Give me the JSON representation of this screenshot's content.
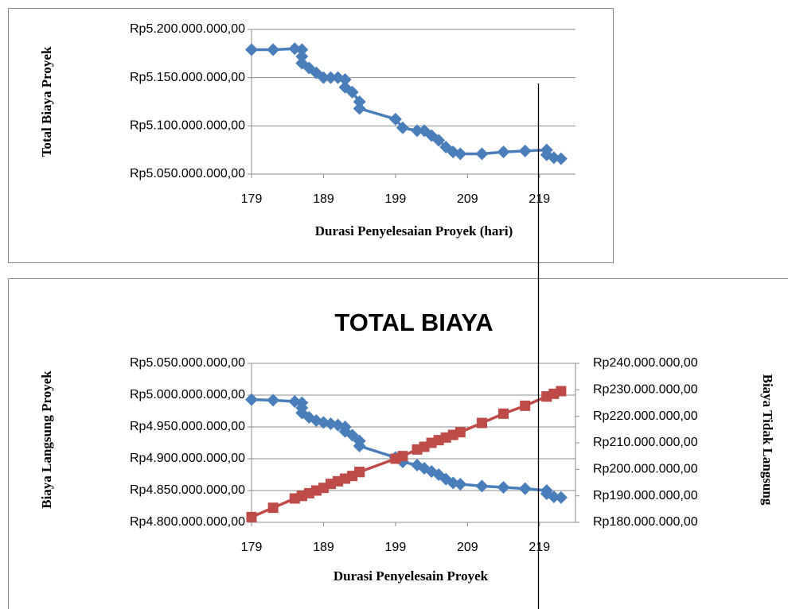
{
  "chart_data": [
    {
      "type": "line",
      "y_label": "Total Biaya Proyek",
      "x_label": "Durasi Penyelesaian Proyek (hari)",
      "x": [
        179,
        182,
        185,
        186,
        186,
        186,
        187,
        188,
        189,
        190,
        191,
        192,
        192,
        193,
        194,
        194,
        199,
        200,
        202,
        203,
        204,
        205,
        206,
        207,
        208,
        211,
        214,
        217,
        220,
        220,
        221,
        222
      ],
      "values": [
        5179000000,
        5179000000,
        5180000000,
        5179000000,
        5172000000,
        5165000000,
        5160000000,
        5155000000,
        5150000000,
        5150000000,
        5150000000,
        5148000000,
        5140000000,
        5135000000,
        5125000000,
        5118000000,
        5107000000,
        5098000000,
        5095000000,
        5095000000,
        5090000000,
        5085000000,
        5078000000,
        5073000000,
        5071000000,
        5071000000,
        5073000000,
        5074000000,
        5075000000,
        5070000000,
        5067000000,
        5066000000
      ],
      "color": "#4a7ebb",
      "xlim": [
        179,
        224
      ],
      "xticks": [
        179,
        189,
        199,
        209,
        219
      ],
      "ylim": [
        5050000000,
        5200000000
      ],
      "yticks": [
        {
          "value": 5050000000,
          "label": "Rp5.050.000.000,00"
        },
        {
          "value": 5100000000,
          "label": "Rp5.100.000.000,00"
        },
        {
          "value": 5150000000,
          "label": "Rp5.150.000.000,00"
        },
        {
          "value": 5200000000,
          "label": "Rp5.200.000.000,00"
        }
      ],
      "grid": true
    },
    {
      "type": "line",
      "title": "TOTAL BIAYA",
      "y_label": "Biaya Langsung Proyek",
      "y2_label": "Biaya Tidak Langsung",
      "x_label": "Durasi Penyelesain Proyek",
      "x": [
        179,
        182,
        185,
        186,
        186,
        186,
        187,
        188,
        189,
        190,
        191,
        192,
        192,
        193,
        194,
        194,
        199,
        200,
        202,
        203,
        204,
        205,
        206,
        207,
        208,
        211,
        214,
        217,
        220,
        220,
        221,
        222
      ],
      "series": [
        {
          "color": "#4a7ebb",
          "marker": "diamond",
          "values": [
            4993000000,
            4992000000,
            4990000000,
            4988000000,
            4980000000,
            4972000000,
            4965000000,
            4960000000,
            4957000000,
            4955000000,
            4953000000,
            4950000000,
            4943000000,
            4937000000,
            4928000000,
            4920000000,
            4902000000,
            4895000000,
            4890000000,
            4885000000,
            4880000000,
            4875000000,
            4868000000,
            4862000000,
            4860000000,
            4857000000,
            4855000000,
            4853000000,
            4850000000,
            4845000000,
            4840000000,
            4839000000
          ]
        },
        {
          "color": "#be4b48",
          "marker": "square",
          "axis": "y2",
          "values": [
            182000000,
            185500000,
            189000000,
            190000000,
            190000000,
            190000000,
            191000000,
            192000000,
            193000000,
            194500000,
            195500000,
            196500000,
            196500000,
            197500000,
            199000000,
            199000000,
            204000000,
            205000000,
            207500000,
            208500000,
            210000000,
            211000000,
            212000000,
            213000000,
            214000000,
            217500000,
            221000000,
            224000000,
            227500000,
            227500000,
            228500000,
            229500000
          ]
        }
      ],
      "xlim": [
        179,
        224
      ],
      "xticks": [
        179,
        189,
        199,
        209,
        219
      ],
      "ylim": [
        4800000000,
        5050000000
      ],
      "yticks": [
        {
          "value": 4800000000,
          "label": "Rp4.800.000.000,00"
        },
        {
          "value": 4850000000,
          "label": "Rp4.850.000.000,00"
        },
        {
          "value": 4900000000,
          "label": "Rp4.900.000.000,00"
        },
        {
          "value": 4950000000,
          "label": "Rp4.950.000.000,00"
        },
        {
          "value": 5000000000,
          "label": "Rp5.000.000.000,00"
        },
        {
          "value": 5050000000,
          "label": "Rp5.050.000.000,00"
        }
      ],
      "y2lim": [
        180000000,
        240000000
      ],
      "y2ticks": [
        {
          "value": 180000000,
          "label": "Rp180.000.000,00"
        },
        {
          "value": 190000000,
          "label": "Rp190.000.000,00"
        },
        {
          "value": 200000000,
          "label": "Rp200.000.000,00"
        },
        {
          "value": 210000000,
          "label": "Rp210.000.000,00"
        },
        {
          "value": 220000000,
          "label": "Rp220.000.000,00"
        },
        {
          "value": 230000000,
          "label": "Rp230.000.000,00"
        },
        {
          "value": 240000000,
          "label": "Rp240.000.000,00"
        }
      ],
      "grid": true
    }
  ]
}
